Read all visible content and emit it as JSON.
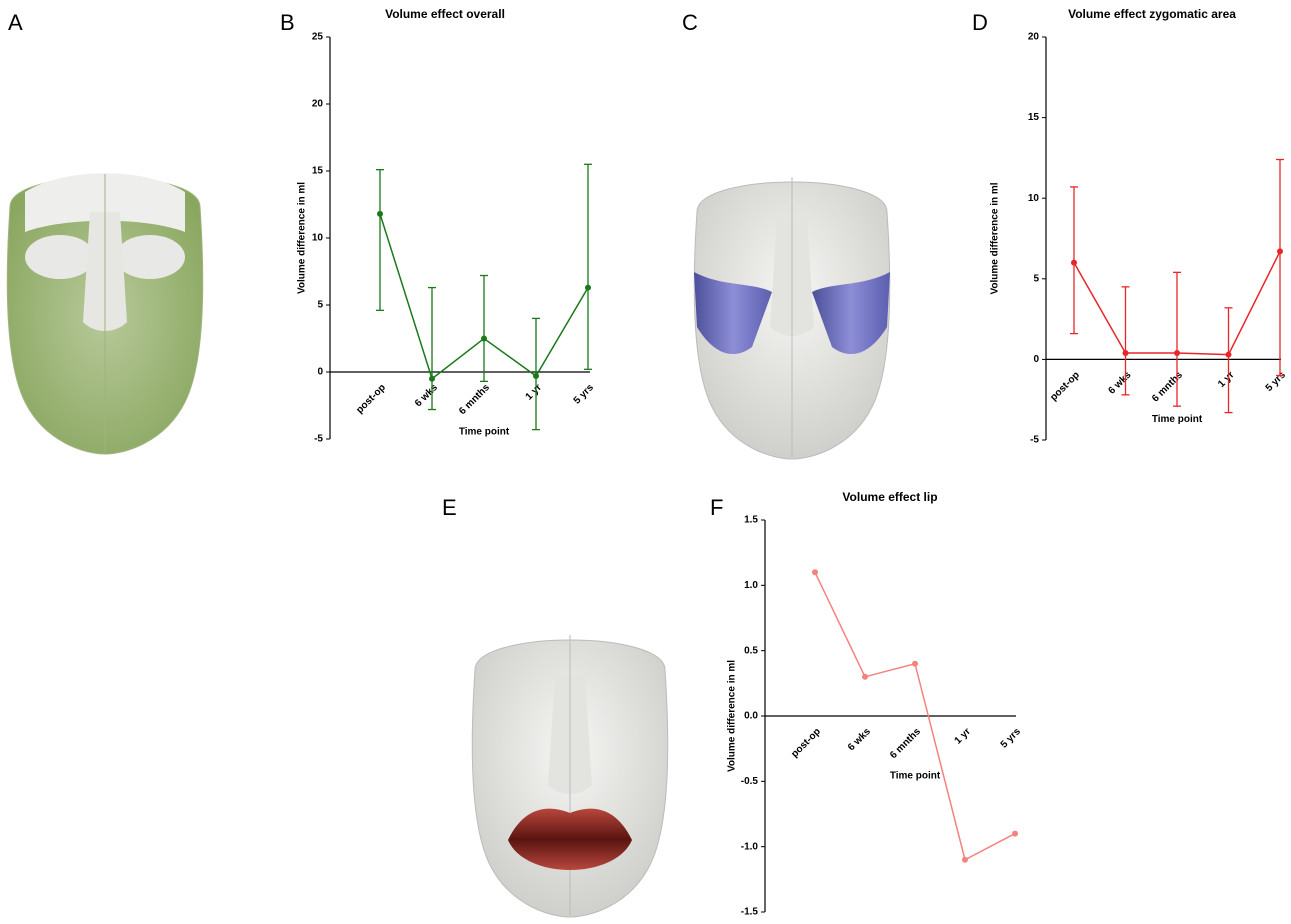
{
  "panel_labels": [
    "A",
    "B",
    "C",
    "D",
    "E",
    "F"
  ],
  "chart_data": [
    {
      "type": "line",
      "title": "Volume effect overall",
      "xlabel": "Time point",
      "ylabel": "Volume difference in ml",
      "categories": [
        "post-op",
        "6 wks",
        "6 mnths",
        "1 yr",
        "5 yrs"
      ],
      "values": [
        11.8,
        -0.5,
        2.5,
        -0.3,
        6.3
      ],
      "lower": [
        4.6,
        -2.8,
        -0.7,
        -4.3,
        0.2
      ],
      "upper": [
        15.1,
        6.3,
        7.2,
        4.0,
        15.5
      ],
      "color": "#1a7a1a",
      "ylim": [
        -5,
        25
      ],
      "yticks": [
        -5,
        0,
        5,
        10,
        15,
        20,
        25
      ]
    },
    {
      "type": "line",
      "title": "Volume effect zygomatic area",
      "xlabel": "Time point",
      "ylabel": "Volume difference in ml",
      "categories": [
        "post-op",
        "6 wks",
        "6 mnths",
        "1 yr",
        "5 yrs"
      ],
      "values": [
        6.0,
        0.4,
        0.4,
        0.3,
        6.7
      ],
      "lower": [
        1.6,
        -2.2,
        -2.9,
        -3.3,
        -1.0
      ],
      "upper": [
        10.7,
        4.5,
        5.4,
        3.2,
        12.4
      ],
      "color": "#e8262a",
      "ylim": [
        -5,
        20
      ],
      "yticks": [
        -5,
        0,
        5,
        10,
        15,
        20
      ]
    },
    {
      "type": "line",
      "title": "Volume effect lip",
      "xlabel": "Time point",
      "ylabel": "Volume difference in ml",
      "categories": [
        "post-op",
        "6 wks",
        "6 mnths",
        "1 yr",
        "5 yrs"
      ],
      "values": [
        1.1,
        0.3,
        0.4,
        -1.1,
        -0.9
      ],
      "color": "#f4827f",
      "ylim": [
        -1.5,
        1.5
      ],
      "yticks": [
        -1.5,
        {
          "value": -1.0,
          "label": "-1.0"
        },
        -0.5,
        {
          "value": 0.0,
          "label": "0.0"
        },
        0.5,
        {
          "value": 1.0,
          "label": "1.0"
        },
        1.5
      ]
    }
  ]
}
